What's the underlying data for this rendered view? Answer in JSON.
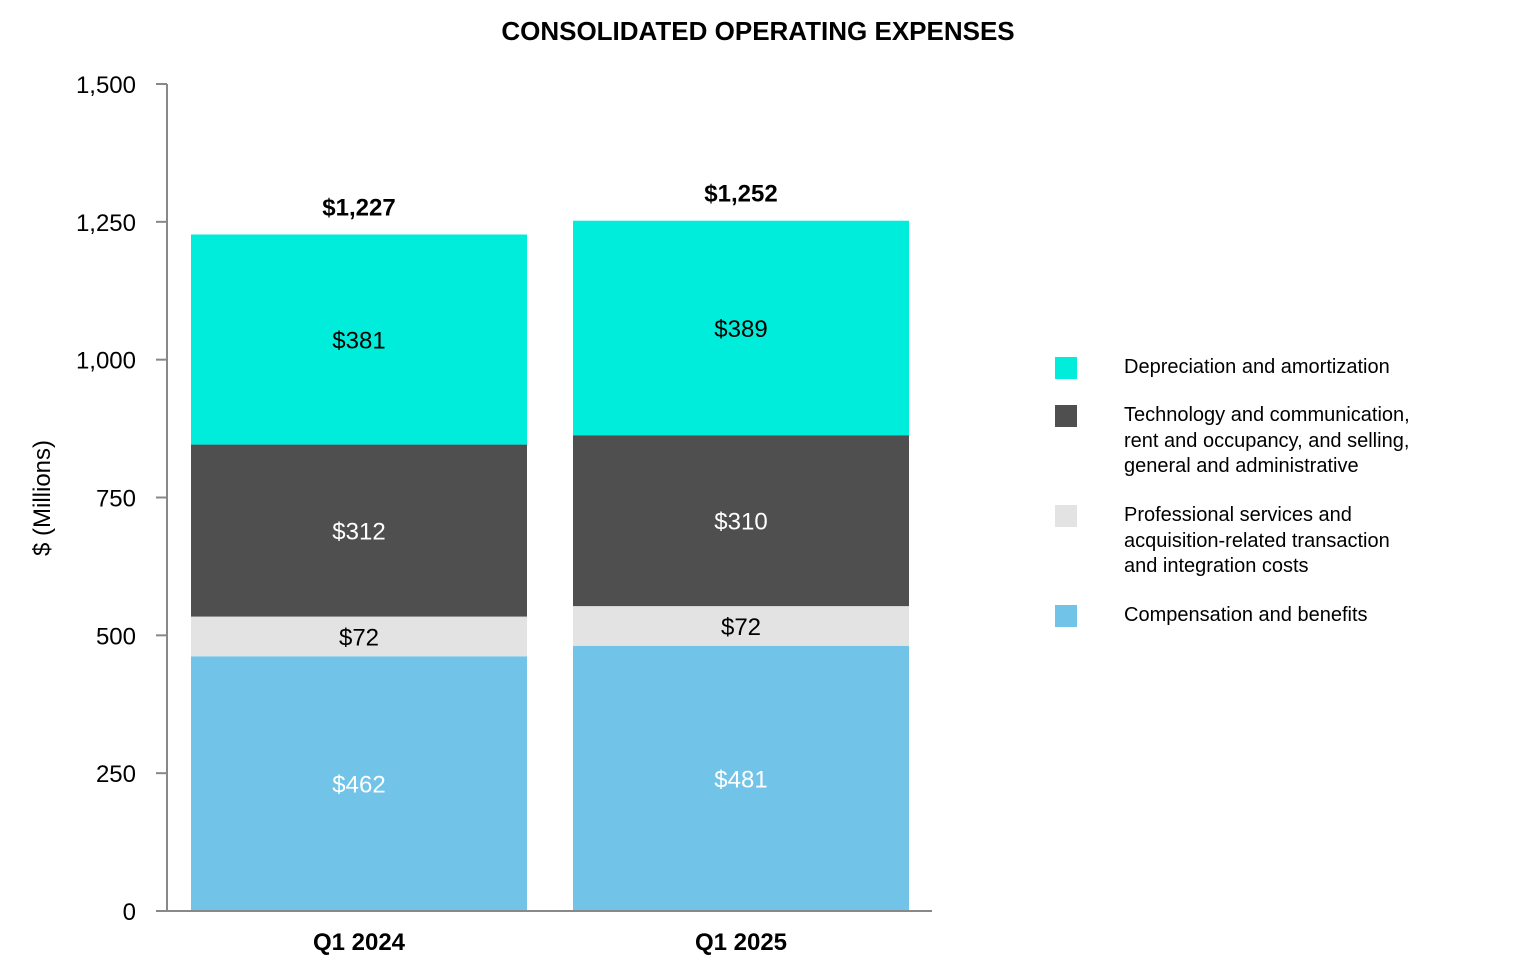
{
  "chart_data": {
    "type": "bar",
    "stacked": true,
    "title": "CONSOLIDATED OPERATING EXPENSES",
    "ylabel": "$ (Millions)",
    "xlabel": "",
    "ylim": [
      0,
      1500
    ],
    "yticks": [
      0,
      250,
      500,
      750,
      1000,
      1250,
      1500
    ],
    "ytick_labels": [
      "0",
      "250",
      "500",
      "750",
      "1,000",
      "1,250",
      "1,500"
    ],
    "categories": [
      "Q1 2024",
      "Q1 2025"
    ],
    "totals": [
      1227,
      1252
    ],
    "total_labels": [
      "$1,227",
      "$1,252"
    ],
    "grid": false,
    "legend_position": "right",
    "series": [
      {
        "name": "Compensation and benefits",
        "values": [
          462,
          481
        ],
        "labels": [
          "$462",
          "$481"
        ],
        "color": "#71C4E8",
        "label_color": "#ffffff"
      },
      {
        "name": "Professional services and\n acquisition-related  transaction\n and integration costs",
        "values": [
          72,
          72
        ],
        "labels": [
          "$72",
          "$72"
        ],
        "color": "#E3E3E3",
        "label_color": "#000000"
      },
      {
        "name": "Technology and communication,\nrent and occupancy, and selling,\ngeneral and administrative",
        "values": [
          312,
          310
        ],
        "labels": [
          "$312",
          "$310"
        ],
        "color": "#4F4F4F",
        "label_color": "#ffffff"
      },
      {
        "name": "Depreciation and amortization",
        "values": [
          381,
          389
        ],
        "labels": [
          "$381",
          "$389"
        ],
        "color": "#00EDDB",
        "label_color": "#000000"
      }
    ]
  }
}
